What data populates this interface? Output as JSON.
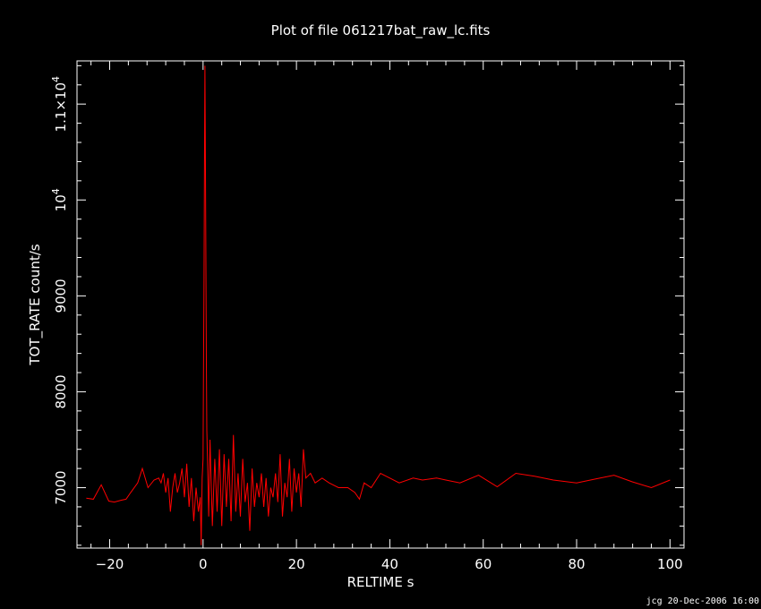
{
  "chart_data": {
    "type": "line",
    "title": "Plot of file 061217bat_raw_lc.fits",
    "xlabel": "RELTIME   s",
    "ylabel": "TOT_RATE   count/s",
    "xlim": [
      -27,
      103
    ],
    "ylim": [
      6370,
      11450
    ],
    "x_ticks": [
      {
        "value": -20,
        "label": "−20"
      },
      {
        "value": 0,
        "label": "0"
      },
      {
        "value": 20,
        "label": "20"
      },
      {
        "value": 40,
        "label": "40"
      },
      {
        "value": 60,
        "label": "60"
      },
      {
        "value": 80,
        "label": "80"
      },
      {
        "value": 100,
        "label": "100"
      }
    ],
    "y_ticks": [
      {
        "value": 7000,
        "label": "7000"
      },
      {
        "value": 8000,
        "label": "8000"
      },
      {
        "value": 9000,
        "label": "9000"
      },
      {
        "value": 10000,
        "label": "10",
        "sup": "4"
      },
      {
        "value": 11000,
        "label": "1.1×10",
        "sup": "4"
      }
    ],
    "x_minor_step": 4,
    "y_minor_step": 200,
    "grid": false,
    "colors": {
      "background": "#000000",
      "axes": "#ffffff",
      "series": "#ff0000"
    },
    "series": [
      {
        "x": [
          -25,
          -23.5,
          -21.8,
          -20.2,
          -19,
          -17.5,
          -16.5,
          -15.5,
          -14,
          -13,
          -11.8,
          -10.5,
          -9.5,
          -9,
          -8.5,
          -8,
          -7.5,
          -7,
          -6.5,
          -6,
          -5.5,
          -5,
          -4.5,
          -4,
          -3.5,
          -3,
          -2.5,
          -2,
          -1.5,
          -1,
          -0.6,
          -0.4,
          -0.2,
          0,
          0.1,
          0.2,
          0.3,
          0.4,
          0.5,
          0.6,
          0.7,
          0.8,
          1,
          1.2,
          1.5,
          2,
          2.5,
          3,
          3.5,
          4,
          4.5,
          5,
          5.5,
          6,
          6.5,
          7,
          7.5,
          8,
          8.5,
          9,
          9.5,
          10,
          10.5,
          11,
          11.5,
          12,
          12.5,
          13,
          13.5,
          14,
          14.5,
          15,
          15.5,
          16,
          16.5,
          17,
          17.5,
          18,
          18.5,
          19,
          19.5,
          20,
          20.5,
          21,
          21.5,
          22,
          23,
          24,
          25.5,
          27,
          29,
          31,
          32.5,
          33.5,
          34.5,
          36,
          38,
          40,
          42,
          45,
          47,
          50,
          52,
          55,
          59,
          63,
          67,
          71,
          75,
          80,
          84,
          88,
          92,
          96,
          100
        ],
        "y": [
          6890,
          6880,
          7030,
          6860,
          6850,
          6870,
          6880,
          6950,
          7050,
          7200,
          7000,
          7080,
          7100,
          7050,
          7150,
          6950,
          7100,
          6750,
          7000,
          7150,
          6950,
          7050,
          7200,
          6900,
          7250,
          6800,
          7100,
          6650,
          7000,
          6750,
          6900,
          6400,
          7100,
          7300,
          8200,
          9200,
          10400,
          11400,
          10500,
          9500,
          8300,
          7600,
          7200,
          6700,
          7500,
          6600,
          7300,
          6750,
          7400,
          6600,
          7350,
          6800,
          7300,
          6650,
          7550,
          6750,
          7150,
          6700,
          7300,
          6850,
          7050,
          6550,
          7200,
          6800,
          7050,
          6900,
          7150,
          6800,
          7100,
          6700,
          7000,
          6900,
          7150,
          6850,
          7350,
          6700,
          7050,
          6900,
          7300,
          6750,
          7200,
          6950,
          7150,
          6800,
          7400,
          7100,
          7150,
          7050,
          7100,
          7050,
          7000,
          7000,
          6950,
          6880,
          7050,
          7000,
          7150,
          7100,
          7050,
          7100,
          7080,
          7100,
          7080,
          7050,
          7130,
          7010,
          7150,
          7120,
          7080,
          7050,
          7090,
          7130,
          7060,
          7000,
          7080
        ]
      }
    ]
  },
  "footer": "jcg 20-Dec-2006 16:00"
}
